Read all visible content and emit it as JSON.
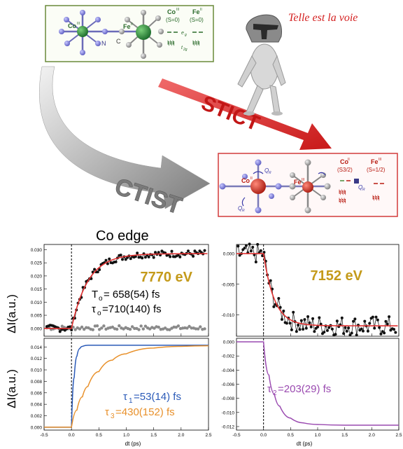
{
  "top_box": {
    "atom_co": "Co",
    "atom_co_sup": "III",
    "atom_fe": "Fe",
    "atom_fe_sup": "II",
    "label_n": "N",
    "label_c": "C",
    "col1_title": "Co",
    "col1_title_sup": "III",
    "col1_spin": "(S=0)",
    "col2_title": "Fe",
    "col2_title_sup": "II",
    "col2_spin": "(S=0)",
    "eg": "e",
    "eg_sub": "g",
    "t2g": "t",
    "t2g_sub": "2g"
  },
  "motto": "Telle est la voie",
  "arrow_stict": "STICT",
  "arrow_ctist": "CTIST",
  "bottom_box": {
    "atom_co": "Co",
    "atom_co_sup": "II",
    "atom_fe": "Fe",
    "atom_fe_sup": "III",
    "q_label_1": "Q",
    "q_label_2": "Q",
    "q_label_3": "Q",
    "q_sub": "R",
    "col1_title": "Co",
    "col1_title_sup": "II",
    "col1_spin": "(S3/2)",
    "col2_title": "Fe",
    "col2_title_sup": "III",
    "col2_spin": "(S=1/2)"
  },
  "co_edge_title": "Co edge",
  "panels": {
    "tl": {
      "energy": "7770 eV",
      "t0": "T",
      "t0_sub": "o",
      "t0_val": "= 658(54) fs",
      "tau0": "τ",
      "tau0_sub": "o",
      "tau0_val": "=710(140) fs"
    },
    "tr": {
      "energy": "7152 eV"
    },
    "bl": {
      "tau1": "τ",
      "tau1_sub": "1",
      "tau1_val": "=53(14) fs",
      "tau3": "τ",
      "tau3_sub": "3",
      "tau3_val": "=430(152) fs"
    },
    "br": {
      "tau2": "τ",
      "tau2_sub": "2",
      "tau2_val": "=203(29) fs"
    }
  },
  "ylabel": "ΔI(a.u.)",
  "xlabel": "dt (ps)",
  "colors": {
    "green_box": "#6a8a3a",
    "red_box": "#d23a3a",
    "energy_gold": "#c49a1a",
    "fit_red": "#e03030",
    "tau1_blue": "#2a5ab8",
    "tau3_orange": "#e8902a",
    "tau2_purple": "#9a4ab0"
  },
  "chart_data": [
    {
      "type": "scatter",
      "title": "7770 eV",
      "xlabel": "",
      "ylabel": "ΔI(a.u.)",
      "xlim": [
        -0.5,
        2.5
      ],
      "ylim": [
        -0.003,
        0.032
      ],
      "yticks": [
        "0.000",
        "0.005",
        "0.010",
        "0.015",
        "0.020",
        "0.025",
        "0.030"
      ],
      "xticks": []
    },
    {
      "type": "scatter",
      "title": "7152 eV",
      "xlabel": "",
      "ylabel": "",
      "xlim": [
        -0.5,
        2.5
      ],
      "ylim": [
        -0.0135,
        0.0015
      ],
      "yticks": [
        "0.000",
        "-0.005",
        "-0.010"
      ],
      "xticks": []
    },
    {
      "type": "line",
      "xlabel": "dt (ps)",
      "ylabel": "ΔI(a.u.)",
      "xlim": [
        -0.5,
        2.5
      ],
      "ylim": [
        -0.0005,
        0.0155
      ],
      "yticks": [
        "0.000",
        "0.002",
        "0.004",
        "0.006",
        "0.008",
        "0.010",
        "0.012",
        "0.014"
      ],
      "xticks": [
        "-0.5",
        "0.0",
        "0.5",
        "1.0",
        "1.5",
        "2.0",
        "2.5"
      ],
      "series": [
        {
          "name": "τ1=53(14) fs",
          "x": [
            -0.5,
            0.0,
            0.05,
            0.1,
            0.15,
            0.2,
            0.3,
            0.5,
            1.0,
            2.5
          ],
          "values": [
            0.0,
            0.0,
            0.0087,
            0.0124,
            0.0137,
            0.0141,
            0.0143,
            0.0143,
            0.0143,
            0.0143
          ]
        },
        {
          "name": "τ3=430(152) fs",
          "x": [
            -0.5,
            0.0,
            0.1,
            0.2,
            0.3,
            0.5,
            0.75,
            1.0,
            1.5,
            2.0,
            2.5
          ],
          "values": [
            0.0,
            0.0,
            0.003,
            0.0053,
            0.0071,
            0.0097,
            0.0117,
            0.0128,
            0.0138,
            0.0141,
            0.0142
          ]
        }
      ]
    },
    {
      "type": "line",
      "xlabel": "dt (ps)",
      "ylabel": "",
      "xlim": [
        -0.5,
        2.5
      ],
      "ylim": [
        -0.0125,
        0.0005
      ],
      "yticks": [
        "0.000",
        "-0.002",
        "-0.004",
        "-0.006",
        "-0.008",
        "-0.010",
        "-0.012"
      ],
      "xticks": [
        "-0.5",
        "0.0",
        "0.5",
        "1.0",
        "1.5",
        "2.0",
        "2.5"
      ],
      "series": [
        {
          "name": "τ2=203(29) fs",
          "x": [
            -0.5,
            0.0,
            0.1,
            0.2,
            0.3,
            0.5,
            0.75,
            1.0,
            1.5,
            2.5
          ],
          "values": [
            0.0,
            0.0,
            -0.0047,
            -0.0074,
            -0.0091,
            -0.0108,
            -0.0115,
            -0.0117,
            -0.0118,
            -0.0118
          ]
        }
      ]
    }
  ]
}
